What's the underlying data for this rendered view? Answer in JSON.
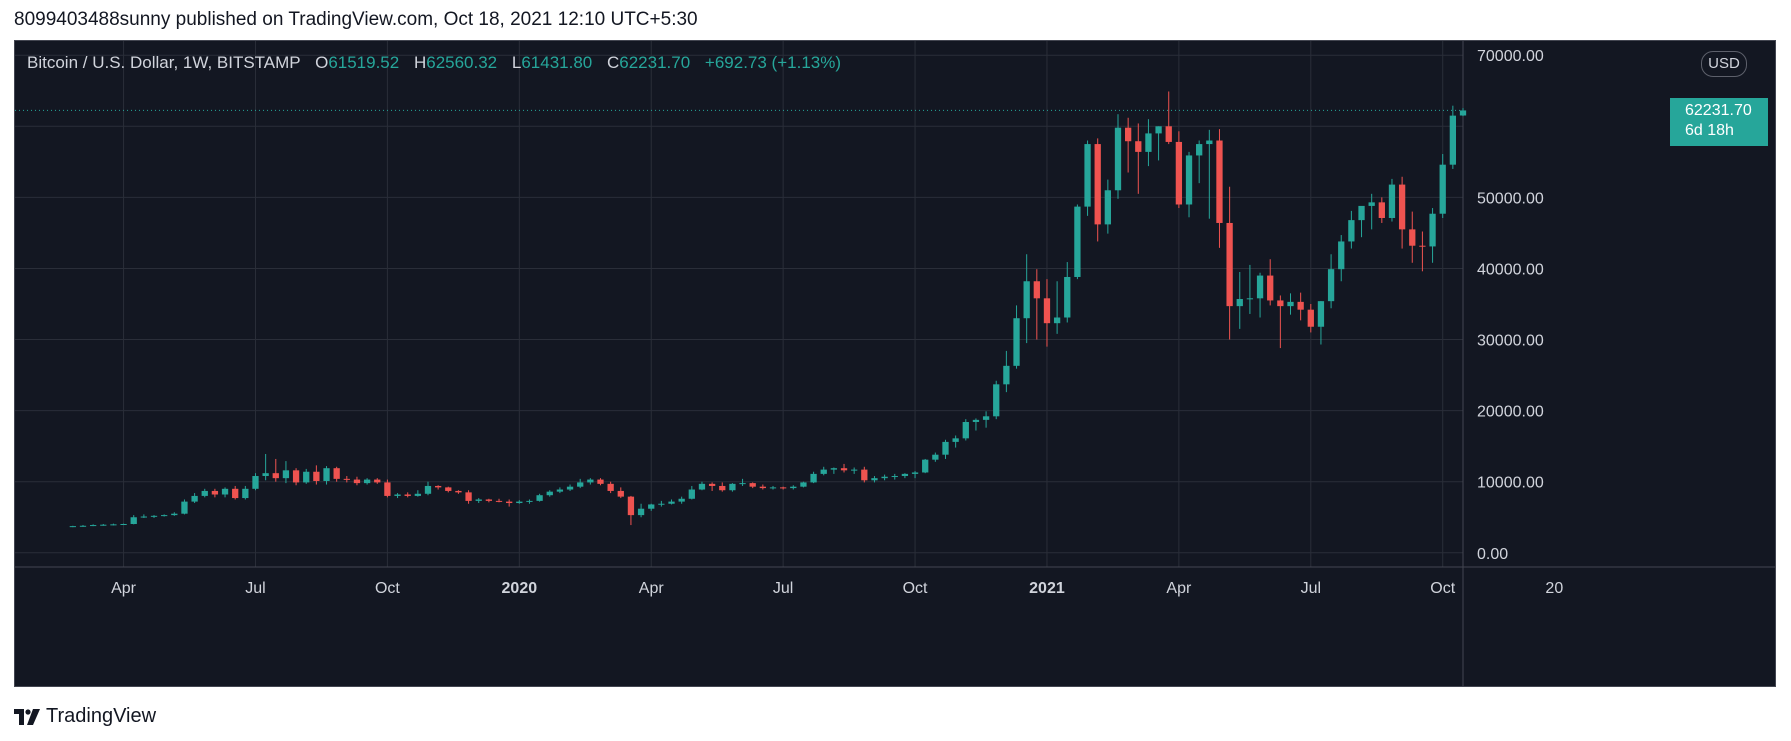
{
  "header": {
    "published_line": "8099403488sunny published on TradingView.com, Oct 18, 2021 12:10 UTC+5:30"
  },
  "legend": {
    "symbol": "Bitcoin / U.S. Dollar, 1W, BITSTAMP",
    "open_label": "O",
    "open": "61519.52",
    "high_label": "H",
    "high": "62560.32",
    "low_label": "L",
    "low": "61431.80",
    "close_label": "C",
    "close": "62231.70",
    "change": "+692.73 (+1.13%)"
  },
  "currency_button": {
    "label": "USD"
  },
  "last_price_tag": {
    "price": "62231.70",
    "countdown": "6d 18h"
  },
  "brand": {
    "name": "TradingView",
    "icon": "tradingview-logo-icon"
  },
  "colors": {
    "up": "#26a69a",
    "down": "#ef5350",
    "background": "#131722",
    "grid": "#2a2e39",
    "text": "#d1d4dc"
  },
  "chart_data": {
    "type": "candlestick",
    "symbol": "BTCUSD",
    "interval": "1W",
    "ylim": [
      -2000,
      72000
    ],
    "y_ticks": [
      0,
      10000,
      20000,
      30000,
      40000,
      50000,
      60000,
      70000
    ],
    "y_tick_labels": [
      "0.00",
      "10000.00",
      "20000.00",
      "30000.00",
      "40000.00",
      "50000.00",
      "",
      "70000.00"
    ],
    "x_range": [
      -5.7,
      137
    ],
    "x_ticks": [
      {
        "x": 5,
        "label": "Apr",
        "bold": false
      },
      {
        "x": 18,
        "label": "Jul",
        "bold": false
      },
      {
        "x": 31,
        "label": "Oct",
        "bold": false
      },
      {
        "x": 44,
        "label": "2020",
        "bold": true
      },
      {
        "x": 57,
        "label": "Apr",
        "bold": false
      },
      {
        "x": 70,
        "label": "Jul",
        "bold": false
      },
      {
        "x": 83,
        "label": "Oct",
        "bold": false
      },
      {
        "x": 96,
        "label": "2021",
        "bold": true
      },
      {
        "x": 109,
        "label": "Apr",
        "bold": false
      },
      {
        "x": 122,
        "label": "Jul",
        "bold": false
      },
      {
        "x": 135,
        "label": "Oct",
        "bold": false
      },
      {
        "x": 146,
        "label": "20",
        "bold": false
      }
    ],
    "last_price": 62231.7,
    "grid": true,
    "candles": [
      {
        "o": 3700,
        "h": 3800,
        "l": 3600,
        "c": 3750
      },
      {
        "o": 3750,
        "h": 3900,
        "l": 3650,
        "c": 3800
      },
      {
        "o": 3800,
        "h": 4000,
        "l": 3750,
        "c": 3900
      },
      {
        "o": 3900,
        "h": 4050,
        "l": 3800,
        "c": 3950
      },
      {
        "o": 3950,
        "h": 4100,
        "l": 3850,
        "c": 4000
      },
      {
        "o": 4000,
        "h": 4100,
        "l": 3900,
        "c": 4050
      },
      {
        "o": 4050,
        "h": 5300,
        "l": 4000,
        "c": 5000
      },
      {
        "o": 5000,
        "h": 5400,
        "l": 4900,
        "c": 5100
      },
      {
        "o": 5100,
        "h": 5300,
        "l": 4900,
        "c": 5200
      },
      {
        "o": 5200,
        "h": 5400,
        "l": 5100,
        "c": 5300
      },
      {
        "o": 5300,
        "h": 5700,
        "l": 5200,
        "c": 5500
      },
      {
        "o": 5500,
        "h": 7500,
        "l": 5400,
        "c": 7200
      },
      {
        "o": 7200,
        "h": 8400,
        "l": 7000,
        "c": 8000
      },
      {
        "o": 8000,
        "h": 9000,
        "l": 7800,
        "c": 8700
      },
      {
        "o": 8700,
        "h": 9000,
        "l": 7800,
        "c": 8200
      },
      {
        "o": 8200,
        "h": 9200,
        "l": 7800,
        "c": 9000
      },
      {
        "o": 9000,
        "h": 9400,
        "l": 7500,
        "c": 7700
      },
      {
        "o": 7700,
        "h": 9400,
        "l": 7500,
        "c": 9000
      },
      {
        "o": 9000,
        "h": 11200,
        "l": 8800,
        "c": 10800
      },
      {
        "o": 10800,
        "h": 13900,
        "l": 10200,
        "c": 11200
      },
      {
        "o": 11200,
        "h": 13200,
        "l": 10000,
        "c": 10500
      },
      {
        "o": 10500,
        "h": 12900,
        "l": 9800,
        "c": 11600
      },
      {
        "o": 11600,
        "h": 11900,
        "l": 9500,
        "c": 9900
      },
      {
        "o": 9900,
        "h": 11800,
        "l": 9700,
        "c": 11400
      },
      {
        "o": 11400,
        "h": 12300,
        "l": 9600,
        "c": 10100
      },
      {
        "o": 10100,
        "h": 12200,
        "l": 9600,
        "c": 11900
      },
      {
        "o": 11900,
        "h": 12100,
        "l": 10000,
        "c": 10400
      },
      {
        "o": 10400,
        "h": 10800,
        "l": 9900,
        "c": 10300
      },
      {
        "o": 10300,
        "h": 10700,
        "l": 9500,
        "c": 9800
      },
      {
        "o": 9800,
        "h": 10500,
        "l": 9600,
        "c": 10300
      },
      {
        "o": 10300,
        "h": 10500,
        "l": 9700,
        "c": 9900
      },
      {
        "o": 9900,
        "h": 10300,
        "l": 7800,
        "c": 8000
      },
      {
        "o": 8000,
        "h": 8400,
        "l": 7700,
        "c": 8200
      },
      {
        "o": 8200,
        "h": 8500,
        "l": 7800,
        "c": 8000
      },
      {
        "o": 8000,
        "h": 8800,
        "l": 7900,
        "c": 8300
      },
      {
        "o": 8300,
        "h": 10000,
        "l": 8100,
        "c": 9400
      },
      {
        "o": 9400,
        "h": 9500,
        "l": 8900,
        "c": 9200
      },
      {
        "o": 9200,
        "h": 9300,
        "l": 8500,
        "c": 8700
      },
      {
        "o": 8700,
        "h": 8800,
        "l": 8300,
        "c": 8500
      },
      {
        "o": 8500,
        "h": 8800,
        "l": 6900,
        "c": 7300
      },
      {
        "o": 7300,
        "h": 7700,
        "l": 7000,
        "c": 7500
      },
      {
        "o": 7500,
        "h": 7600,
        "l": 7100,
        "c": 7300
      },
      {
        "o": 7300,
        "h": 7600,
        "l": 7100,
        "c": 7200
      },
      {
        "o": 7200,
        "h": 7500,
        "l": 6500,
        "c": 7000
      },
      {
        "o": 7000,
        "h": 7400,
        "l": 6900,
        "c": 7200
      },
      {
        "o": 7200,
        "h": 7500,
        "l": 6900,
        "c": 7300
      },
      {
        "o": 7300,
        "h": 8300,
        "l": 7200,
        "c": 8100
      },
      {
        "o": 8100,
        "h": 8800,
        "l": 7900,
        "c": 8600
      },
      {
        "o": 8600,
        "h": 9200,
        "l": 8400,
        "c": 8900
      },
      {
        "o": 8900,
        "h": 9600,
        "l": 8700,
        "c": 9300
      },
      {
        "o": 9300,
        "h": 10400,
        "l": 9100,
        "c": 9900
      },
      {
        "o": 9900,
        "h": 10500,
        "l": 9600,
        "c": 10300
      },
      {
        "o": 10300,
        "h": 10500,
        "l": 9500,
        "c": 9700
      },
      {
        "o": 9700,
        "h": 10000,
        "l": 8400,
        "c": 8700
      },
      {
        "o": 8700,
        "h": 9200,
        "l": 7700,
        "c": 7900
      },
      {
        "o": 7900,
        "h": 8000,
        "l": 3900,
        "c": 5300
      },
      {
        "o": 5300,
        "h": 6900,
        "l": 5000,
        "c": 6200
      },
      {
        "o": 6200,
        "h": 6900,
        "l": 5900,
        "c": 6800
      },
      {
        "o": 6800,
        "h": 7300,
        "l": 6500,
        "c": 6900
      },
      {
        "o": 6900,
        "h": 7500,
        "l": 6800,
        "c": 7200
      },
      {
        "o": 7200,
        "h": 7900,
        "l": 6900,
        "c": 7600
      },
      {
        "o": 7600,
        "h": 9400,
        "l": 7500,
        "c": 8900
      },
      {
        "o": 8900,
        "h": 10000,
        "l": 8800,
        "c": 9700
      },
      {
        "o": 9700,
        "h": 9900,
        "l": 8700,
        "c": 9400
      },
      {
        "o": 9400,
        "h": 9900,
        "l": 8600,
        "c": 8800
      },
      {
        "o": 8800,
        "h": 9800,
        "l": 8600,
        "c": 9700
      },
      {
        "o": 9700,
        "h": 10400,
        "l": 9400,
        "c": 9800
      },
      {
        "o": 9800,
        "h": 9900,
        "l": 9100,
        "c": 9300
      },
      {
        "o": 9300,
        "h": 9600,
        "l": 8900,
        "c": 9100
      },
      {
        "o": 9100,
        "h": 9400,
        "l": 8900,
        "c": 9200
      },
      {
        "o": 9200,
        "h": 9300,
        "l": 8900,
        "c": 9100
      },
      {
        "o": 9100,
        "h": 9500,
        "l": 8900,
        "c": 9300
      },
      {
        "o": 9300,
        "h": 10000,
        "l": 9200,
        "c": 9900
      },
      {
        "o": 9900,
        "h": 11400,
        "l": 9800,
        "c": 11100
      },
      {
        "o": 11100,
        "h": 12100,
        "l": 10900,
        "c": 11700
      },
      {
        "o": 11700,
        "h": 12000,
        "l": 11100,
        "c": 11900
      },
      {
        "o": 11900,
        "h": 12500,
        "l": 11300,
        "c": 11600
      },
      {
        "o": 11600,
        "h": 12000,
        "l": 11100,
        "c": 11700
      },
      {
        "o": 11700,
        "h": 12100,
        "l": 9900,
        "c": 10200
      },
      {
        "o": 10200,
        "h": 10800,
        "l": 9900,
        "c": 10500
      },
      {
        "o": 10500,
        "h": 11000,
        "l": 10200,
        "c": 10700
      },
      {
        "o": 10700,
        "h": 11100,
        "l": 10300,
        "c": 10800
      },
      {
        "o": 10800,
        "h": 11200,
        "l": 10500,
        "c": 11100
      },
      {
        "o": 11100,
        "h": 11500,
        "l": 10500,
        "c": 11300
      },
      {
        "o": 11300,
        "h": 13200,
        "l": 11200,
        "c": 13100
      },
      {
        "o": 13100,
        "h": 14100,
        "l": 12800,
        "c": 13800
      },
      {
        "o": 13800,
        "h": 15900,
        "l": 13200,
        "c": 15600
      },
      {
        "o": 15600,
        "h": 16500,
        "l": 14800,
        "c": 16100
      },
      {
        "o": 16100,
        "h": 18800,
        "l": 15800,
        "c": 18400
      },
      {
        "o": 18400,
        "h": 18900,
        "l": 17200,
        "c": 18700
      },
      {
        "o": 18700,
        "h": 19900,
        "l": 17600,
        "c": 19200
      },
      {
        "o": 19200,
        "h": 24200,
        "l": 18800,
        "c": 23700
      },
      {
        "o": 23700,
        "h": 28400,
        "l": 22600,
        "c": 26300
      },
      {
        "o": 26300,
        "h": 34800,
        "l": 25900,
        "c": 33000
      },
      {
        "o": 33000,
        "h": 42000,
        "l": 29500,
        "c": 38200
      },
      {
        "o": 38200,
        "h": 39900,
        "l": 30000,
        "c": 35800
      },
      {
        "o": 35800,
        "h": 38500,
        "l": 29000,
        "c": 32300
      },
      {
        "o": 32300,
        "h": 38200,
        "l": 30800,
        "c": 33100
      },
      {
        "o": 33100,
        "h": 40900,
        "l": 32400,
        "c": 38800
      },
      {
        "o": 38800,
        "h": 49000,
        "l": 38500,
        "c": 48700
      },
      {
        "o": 48700,
        "h": 58000,
        "l": 47400,
        "c": 57500
      },
      {
        "o": 57500,
        "h": 58300,
        "l": 43800,
        "c": 46200
      },
      {
        "o": 46200,
        "h": 52500,
        "l": 44900,
        "c": 51000
      },
      {
        "o": 51000,
        "h": 61700,
        "l": 49800,
        "c": 59800
      },
      {
        "o": 59800,
        "h": 61200,
        "l": 53500,
        "c": 57900
      },
      {
        "o": 57900,
        "h": 60400,
        "l": 50500,
        "c": 56400
      },
      {
        "o": 56400,
        "h": 61000,
        "l": 54400,
        "c": 59000
      },
      {
        "o": 59000,
        "h": 60000,
        "l": 55200,
        "c": 60000
      },
      {
        "o": 60000,
        "h": 64900,
        "l": 57500,
        "c": 57800
      },
      {
        "o": 57800,
        "h": 59300,
        "l": 48500,
        "c": 49000
      },
      {
        "o": 49000,
        "h": 56400,
        "l": 47200,
        "c": 55900
      },
      {
        "o": 55900,
        "h": 58000,
        "l": 52000,
        "c": 57500
      },
      {
        "o": 57500,
        "h": 59500,
        "l": 47000,
        "c": 58000
      },
      {
        "o": 58000,
        "h": 59600,
        "l": 42900,
        "c": 46400
      },
      {
        "o": 46400,
        "h": 51500,
        "l": 30000,
        "c": 34700
      },
      {
        "o": 34700,
        "h": 39500,
        "l": 31500,
        "c": 35700
      },
      {
        "o": 35700,
        "h": 40500,
        "l": 33600,
        "c": 35800
      },
      {
        "o": 35800,
        "h": 39400,
        "l": 33100,
        "c": 39000
      },
      {
        "o": 39000,
        "h": 41300,
        "l": 34800,
        "c": 35500
      },
      {
        "o": 35500,
        "h": 36200,
        "l": 28800,
        "c": 34700
      },
      {
        "o": 34700,
        "h": 36500,
        "l": 33500,
        "c": 35300
      },
      {
        "o": 35300,
        "h": 36600,
        "l": 32700,
        "c": 34200
      },
      {
        "o": 34200,
        "h": 35000,
        "l": 31000,
        "c": 31800
      },
      {
        "o": 31800,
        "h": 35400,
        "l": 29300,
        "c": 35400
      },
      {
        "o": 35400,
        "h": 42000,
        "l": 34400,
        "c": 39900
      },
      {
        "o": 39900,
        "h": 44700,
        "l": 38200,
        "c": 43800
      },
      {
        "o": 43800,
        "h": 48100,
        "l": 42800,
        "c": 46800
      },
      {
        "o": 46800,
        "h": 48200,
        "l": 44400,
        "c": 48800
      },
      {
        "o": 48800,
        "h": 50500,
        "l": 45500,
        "c": 49300
      },
      {
        "o": 49300,
        "h": 50000,
        "l": 46400,
        "c": 47100
      },
      {
        "o": 47100,
        "h": 52600,
        "l": 46600,
        "c": 51800
      },
      {
        "o": 51800,
        "h": 52900,
        "l": 42800,
        "c": 45500
      },
      {
        "o": 45500,
        "h": 48000,
        "l": 40800,
        "c": 43200
      },
      {
        "o": 43200,
        "h": 45200,
        "l": 39600,
        "c": 43100
      },
      {
        "o": 43100,
        "h": 48500,
        "l": 40800,
        "c": 47700
      },
      {
        "o": 47700,
        "h": 56100,
        "l": 47100,
        "c": 54600
      },
      {
        "o": 54600,
        "h": 62900,
        "l": 54000,
        "c": 61500
      },
      {
        "o": 61519.52,
        "h": 62560.32,
        "l": 61431.8,
        "c": 62231.7
      }
    ]
  }
}
